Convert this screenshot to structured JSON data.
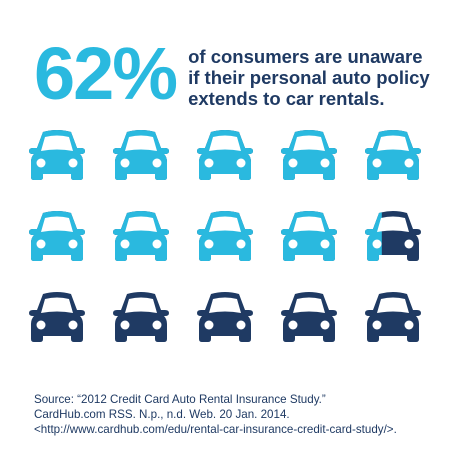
{
  "headline": {
    "percent": "62%",
    "lines": [
      "of consumers are unaware",
      "if their personal auto policy",
      "extends to car rentals."
    ]
  },
  "colors": {
    "aware": "#2ab9df",
    "unaware": "#1f3a63",
    "text_dark": "#1f3a63"
  },
  "pictogram": {
    "icon": "car-icon",
    "total": 15,
    "columns": 5,
    "percent_light": 62
  },
  "source": {
    "lines": [
      "Source: “2012 Credit Card Auto Rental Insurance Study.”",
      "CardHub.com RSS. N.p., n.d. Web. 20 Jan. 2014.",
      "<http://www.cardhub.com/edu/rental-car-insurance-credit-card-study/>."
    ]
  }
}
